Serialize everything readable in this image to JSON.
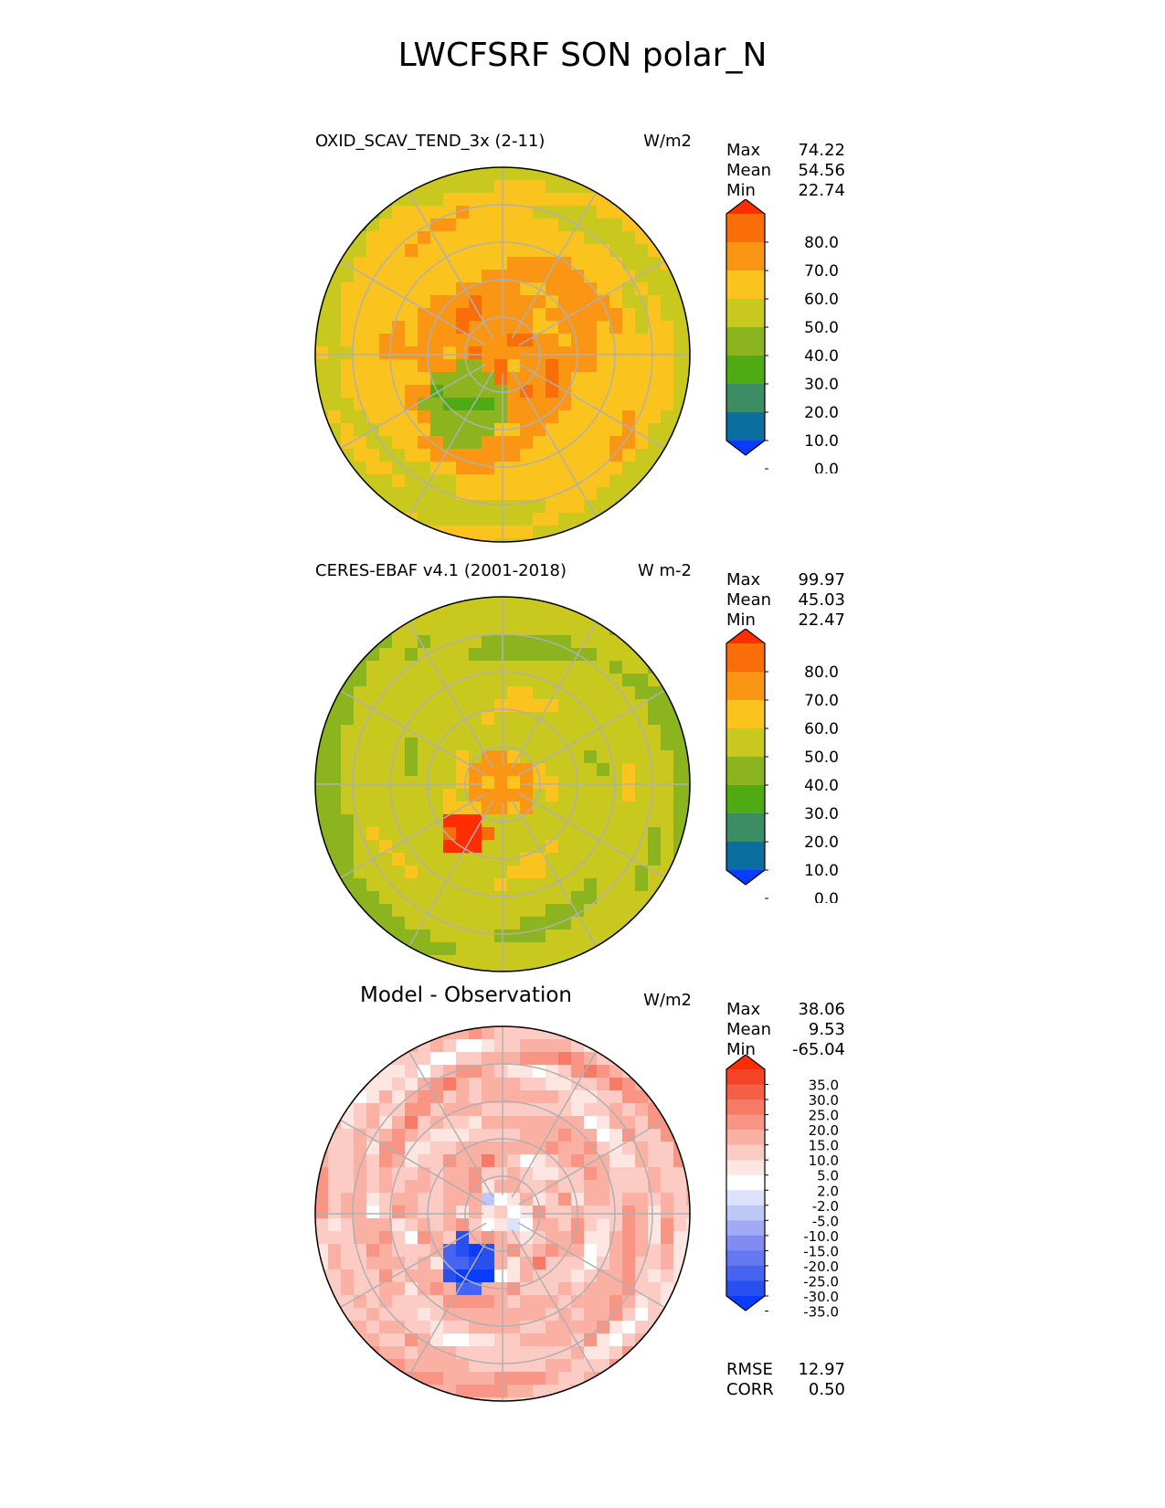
{
  "title": "LWCFSRF SON polar_N",
  "panels": [
    {
      "label": "OXID_SCAV_TEND_3x (2-11)",
      "units": "W/m2",
      "stats": {
        "max_label": "Max",
        "max": "74.22",
        "mean_label": "Mean",
        "mean": "54.56",
        "min_label": "Min",
        "min": "22.74"
      }
    },
    {
      "label": "CERES-EBAF v4.1 (2001-2018)",
      "units": "W m-2",
      "stats": {
        "max_label": "Max",
        "max": "99.97",
        "mean_label": "Mean",
        "mean": "45.03",
        "min_label": "Min",
        "min": "22.47"
      }
    },
    {
      "label": "Model - Observation",
      "units": "W/m2",
      "stats": {
        "max_label": "Max",
        "max": "38.06",
        "mean_label": "Mean",
        "mean": "9.53",
        "min_label": "Min",
        "min": "-65.04"
      },
      "extra": {
        "rmse_label": "RMSE",
        "rmse": "12.97",
        "corr_label": "CORR",
        "corr": "0.50"
      }
    }
  ],
  "chart_data": [
    {
      "type": "heatmap",
      "projection": "north-polar-stereographic",
      "title": "OXID_SCAV_TEND_3x (2-11)",
      "units": "W/m2",
      "colorbar": {
        "tick_labels": [
          "80.0",
          "70.0",
          "60.0",
          "50.0",
          "40.0",
          "30.0",
          "20.0",
          "10.0",
          "0.0"
        ],
        "levels": [
          0,
          10,
          20,
          30,
          40,
          50,
          60,
          70,
          80
        ],
        "colors": [
          "#0a3cff",
          "#0a6ea0",
          "#3c8c64",
          "#50aa14",
          "#8cb41e",
          "#c8c81e",
          "#fac31e",
          "#fa9614",
          "#fa6e0a",
          "#ff2d00"
        ],
        "extend": "both"
      },
      "field_summary": {
        "max": 74.22,
        "mean": 54.56,
        "min": 22.74
      }
    },
    {
      "type": "heatmap",
      "projection": "north-polar-stereographic",
      "title": "CERES-EBAF v4.1 (2001-2018)",
      "units": "W m-2",
      "colorbar": {
        "tick_labels": [
          "80.0",
          "70.0",
          "60.0",
          "50.0",
          "40.0",
          "30.0",
          "20.0",
          "10.0",
          "0.0"
        ],
        "levels": [
          0,
          10,
          20,
          30,
          40,
          50,
          60,
          70,
          80
        ],
        "colors": [
          "#0a3cff",
          "#0a6ea0",
          "#3c8c64",
          "#50aa14",
          "#8cb41e",
          "#c8c81e",
          "#fac31e",
          "#fa9614",
          "#fa6e0a",
          "#ff2d00"
        ],
        "extend": "both"
      },
      "field_summary": {
        "max": 99.97,
        "mean": 45.03,
        "min": 22.47
      }
    },
    {
      "type": "heatmap",
      "projection": "north-polar-stereographic",
      "title": "Model - Observation",
      "units": "W/m2",
      "colorbar": {
        "tick_labels": [
          "35.0",
          "30.0",
          "25.0",
          "20.0",
          "15.0",
          "10.0",
          "5.0",
          "2.0",
          "-2.0",
          "-5.0",
          "-10.0",
          "-15.0",
          "-20.0",
          "-25.0",
          "-30.0",
          "-35.0"
        ],
        "levels": [
          -35,
          -30,
          -25,
          -20,
          -15,
          -10,
          -5,
          -2,
          2,
          5,
          10,
          15,
          20,
          25,
          30,
          35
        ],
        "colors": [
          "#0a3cff",
          "#2850f0",
          "#4664f0",
          "#6478f0",
          "#828cf0",
          "#a0aaf5",
          "#bec8f8",
          "#dce1fc",
          "#ffffff",
          "#fde6e2",
          "#fccbc3",
          "#fbb0a4",
          "#f99585",
          "#f77a66",
          "#f55f47",
          "#f34428",
          "#ff2d00"
        ],
        "extend": "both"
      },
      "field_summary": {
        "max": 38.06,
        "mean": 9.53,
        "min": -65.04
      },
      "rmse": 12.97,
      "corr": 0.5
    }
  ]
}
